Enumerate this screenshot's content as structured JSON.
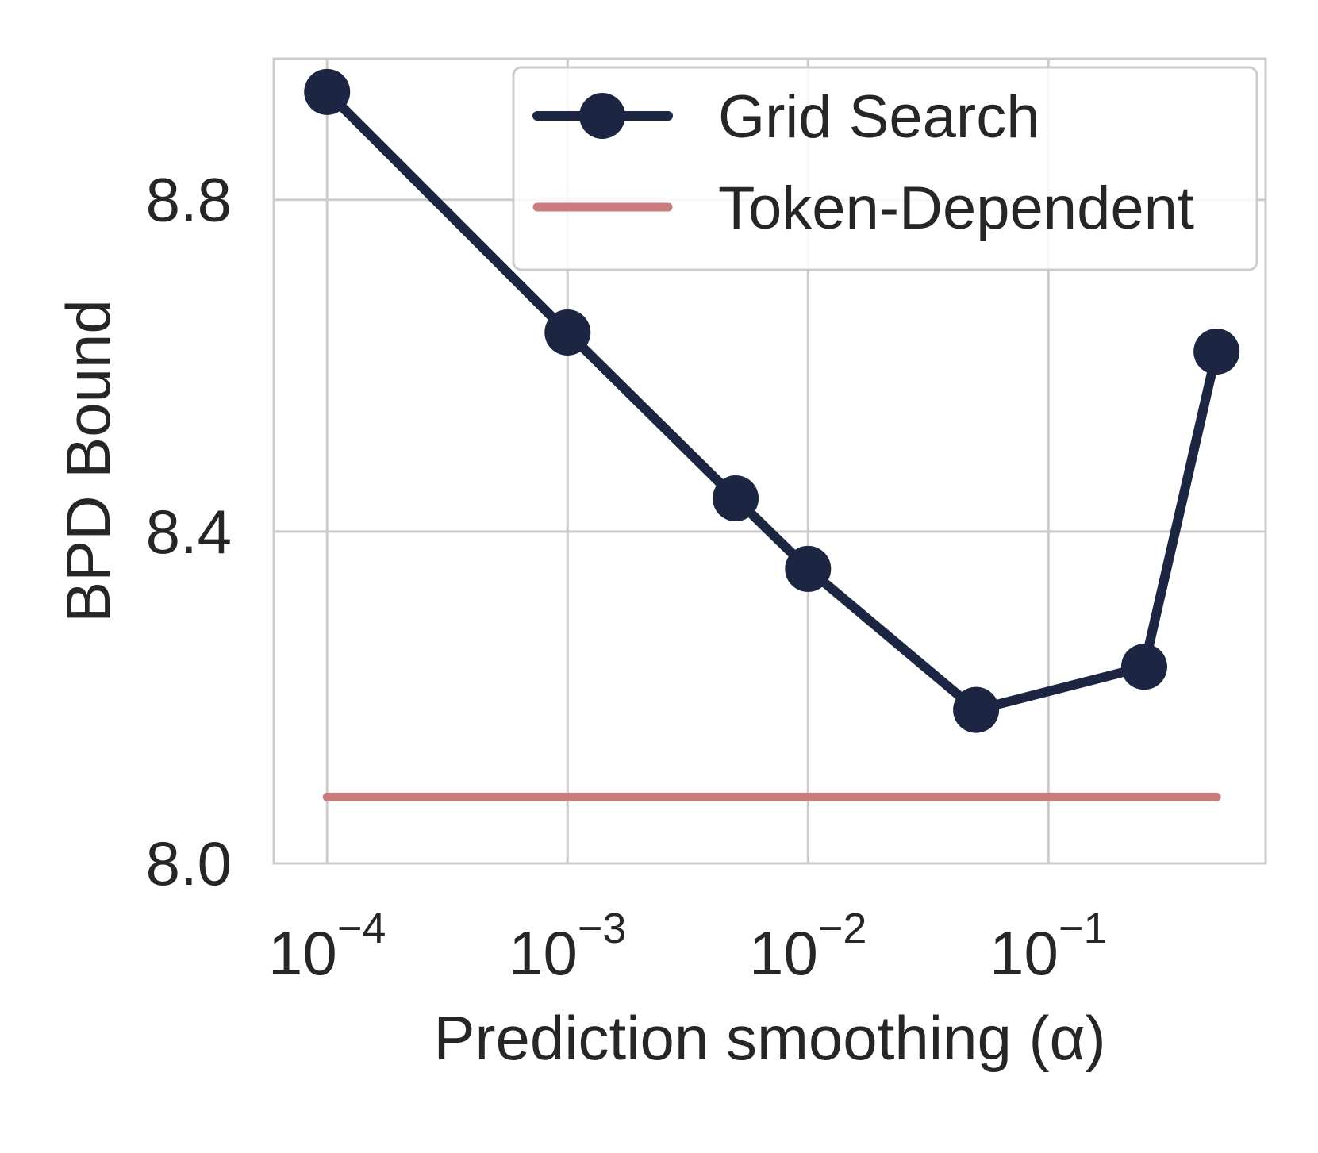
{
  "chart_data": {
    "type": "line",
    "xlabel": "Prediction smoothing (α)",
    "ylabel": "BPD Bound",
    "xscale": "log",
    "xlim": [
      6e-05,
      0.8
    ],
    "ylim": [
      8.0,
      8.97
    ],
    "grid": true,
    "legend_position": "top-right",
    "x_ticks": [
      {
        "value": 0.0001,
        "base": "10",
        "exp": "−4"
      },
      {
        "value": 0.001,
        "base": "10",
        "exp": "−3"
      },
      {
        "value": 0.01,
        "base": "10",
        "exp": "−2"
      },
      {
        "value": 0.1,
        "base": "10",
        "exp": "−1"
      }
    ],
    "y_ticks": [
      {
        "value": 8.0,
        "label": "8.0"
      },
      {
        "value": 8.4,
        "label": "8.4"
      },
      {
        "value": 8.8,
        "label": "8.8"
      }
    ],
    "series": [
      {
        "name": "Grid Search",
        "color": "#1c2541",
        "marker": "circle",
        "x": [
          0.0001,
          0.001,
          0.005,
          0.01,
          0.05,
          0.25,
          0.5
        ],
        "y": [
          8.93,
          8.64,
          8.44,
          8.355,
          8.185,
          8.237,
          8.617
        ]
      },
      {
        "name": "Token-Dependent",
        "color": "#c97b7e",
        "marker": "none",
        "x": [
          0.0001,
          0.5
        ],
        "y": [
          8.08,
          8.08
        ]
      }
    ]
  }
}
